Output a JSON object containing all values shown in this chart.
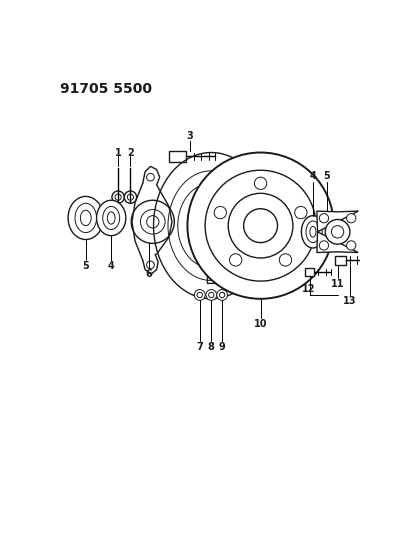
{
  "title": "91705 5500",
  "bg_color": "#ffffff",
  "line_color": "#1a1a1a",
  "title_fontsize": 10,
  "title_weight": "bold",
  "fig_width": 4.01,
  "fig_height": 5.33,
  "dpi": 100,
  "label_fontsize": 7,
  "label_weight": "bold",
  "lw_thin": 0.7,
  "lw_med": 1.0,
  "lw_thick": 1.4
}
